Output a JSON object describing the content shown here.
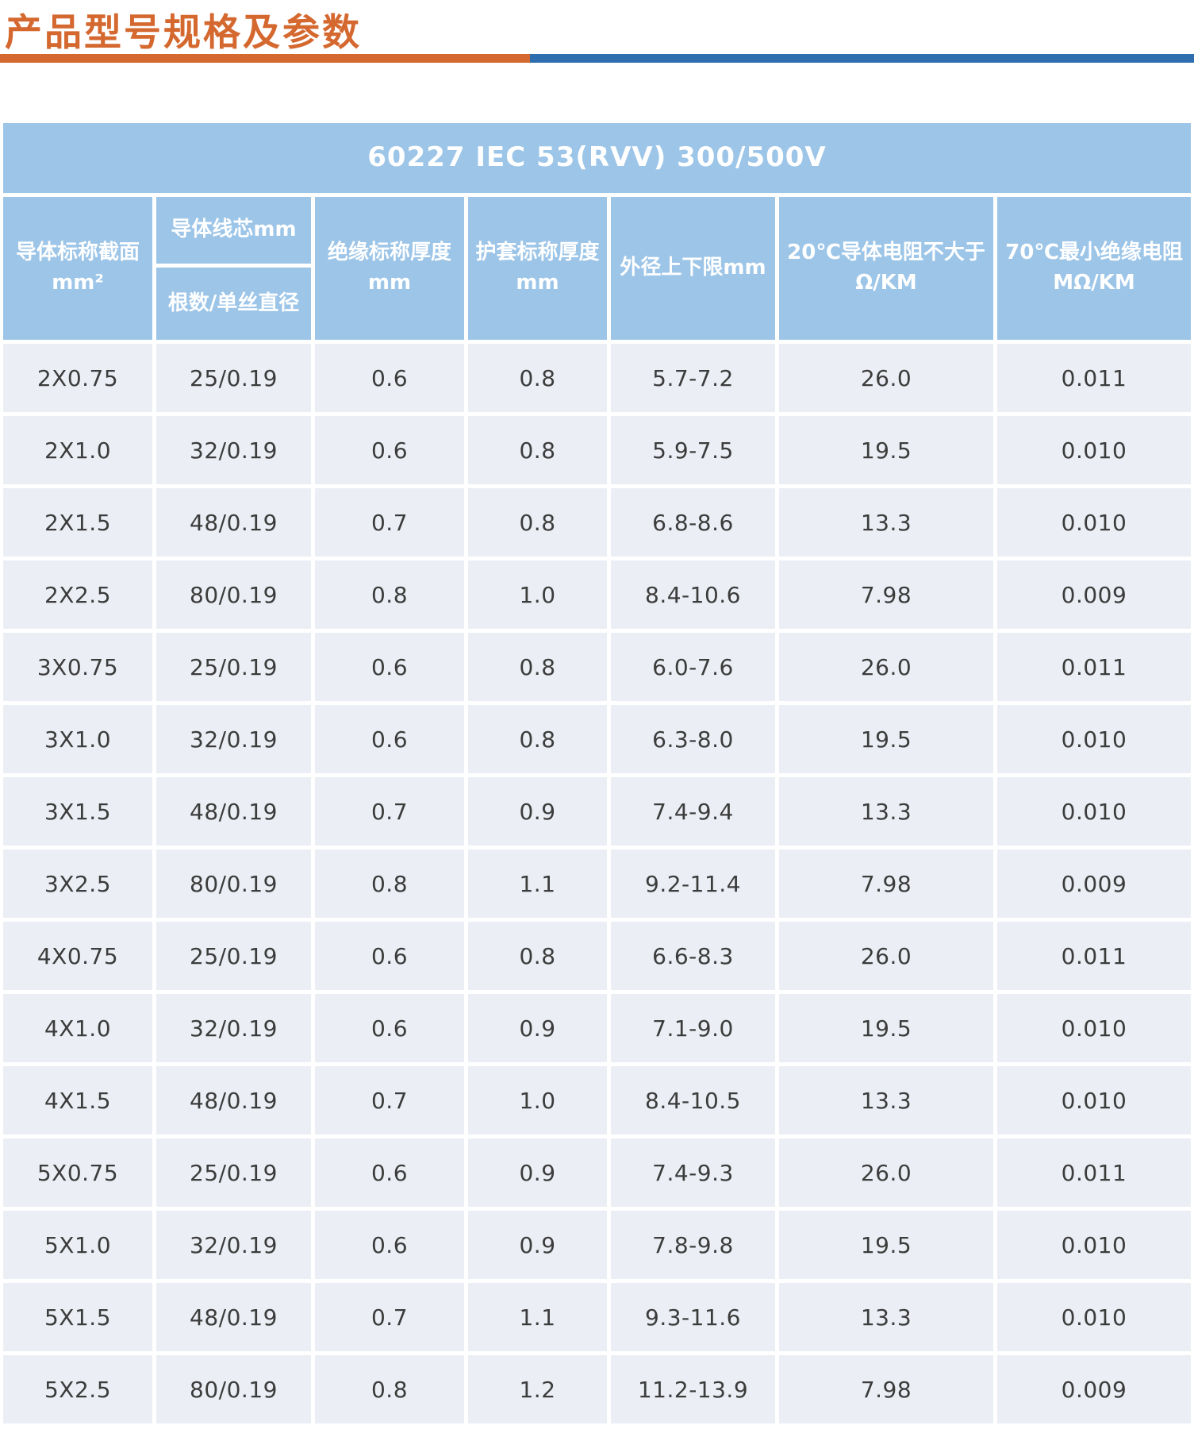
{
  "page": {
    "title": "产品型号规格及参数"
  },
  "colors": {
    "accent_orange": "#d4682f",
    "accent_blue": "#2e6dae",
    "table_header_bg": "#9cc5e8",
    "table_row_bg": "#ebeef4",
    "header_text": "#ffffff",
    "cell_text": "#3c3c3c"
  },
  "table": {
    "title": "60227 IEC 53(RVV) 300/500V",
    "header": {
      "col1": [
        "导体标称截面",
        "mm²"
      ],
      "col2_top": [
        "导体线芯mm"
      ],
      "col2_bottom": [
        "根数/单丝直径"
      ],
      "col3": [
        "绝缘标称厚度",
        "mm"
      ],
      "col4": [
        "护套标称厚度",
        "mm"
      ],
      "col5": [
        "外径上下限mm"
      ],
      "col6": [
        "20℃导体电阻不大于",
        "Ω/KM"
      ],
      "col7": [
        "70℃最小绝缘电阻",
        "MΩ/KM"
      ]
    },
    "rows": [
      [
        "2X0.75",
        "25/0.19",
        "0.6",
        "0.8",
        "5.7-7.2",
        "26.0",
        "0.011"
      ],
      [
        "2X1.0",
        "32/0.19",
        "0.6",
        "0.8",
        "5.9-7.5",
        "19.5",
        "0.010"
      ],
      [
        "2X1.5",
        "48/0.19",
        "0.7",
        "0.8",
        "6.8-8.6",
        "13.3",
        "0.010"
      ],
      [
        "2X2.5",
        "80/0.19",
        "0.8",
        "1.0",
        "8.4-10.6",
        "7.98",
        "0.009"
      ],
      [
        "3X0.75",
        "25/0.19",
        "0.6",
        "0.8",
        "6.0-7.6",
        "26.0",
        "0.011"
      ],
      [
        "3X1.0",
        "32/0.19",
        "0.6",
        "0.8",
        "6.3-8.0",
        "19.5",
        "0.010"
      ],
      [
        "3X1.5",
        "48/0.19",
        "0.7",
        "0.9",
        "7.4-9.4",
        "13.3",
        "0.010"
      ],
      [
        "3X2.5",
        "80/0.19",
        "0.8",
        "1.1",
        "9.2-11.4",
        "7.98",
        "0.009"
      ],
      [
        "4X0.75",
        "25/0.19",
        "0.6",
        "0.8",
        "6.6-8.3",
        "26.0",
        "0.011"
      ],
      [
        "4X1.0",
        "32/0.19",
        "0.6",
        "0.9",
        "7.1-9.0",
        "19.5",
        "0.010"
      ],
      [
        "4X1.5",
        "48/0.19",
        "0.7",
        "1.0",
        "8.4-10.5",
        "13.3",
        "0.010"
      ],
      [
        "5X0.75",
        "25/0.19",
        "0.6",
        "0.9",
        "7.4-9.3",
        "26.0",
        "0.011"
      ],
      [
        "5X1.0",
        "32/0.19",
        "0.6",
        "0.9",
        "7.8-9.8",
        "19.5",
        "0.010"
      ],
      [
        "5X1.5",
        "48/0.19",
        "0.7",
        "1.1",
        "9.3-11.6",
        "13.3",
        "0.010"
      ],
      [
        "5X2.5",
        "80/0.19",
        "0.8",
        "1.2",
        "11.2-13.9",
        "7.98",
        "0.009"
      ]
    ]
  }
}
